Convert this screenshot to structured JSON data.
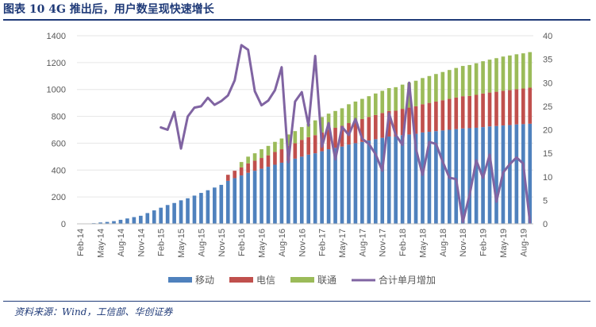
{
  "figure_title": "图表 10   4G 推出后，用户数呈现快速增长",
  "source": "资料来源：Wind，工信部、华创证券",
  "colors": {
    "mobile": "#4f81bd",
    "telecom": "#c0504d",
    "unicom": "#9bbb59",
    "net_add": "#8064a2",
    "axis": "#bfbfbf",
    "text": "#595959"
  },
  "chart_data": {
    "type": "bar",
    "title": "",
    "xlabel": "",
    "ylabel": "",
    "ylim": [
      0,
      1400
    ],
    "y_ticks": [
      "0",
      "200",
      "400",
      "600",
      "800",
      "1000",
      "1200",
      "1400"
    ],
    "y2lim": [
      0,
      40
    ],
    "y2_ticks": [
      "0",
      "5",
      "10",
      "15",
      "20",
      "25",
      "30",
      "35",
      "40"
    ],
    "x_tick_labels": [
      "Feb-14",
      "May-14",
      "Aug-14",
      "Nov-14",
      "Feb-15",
      "May-15",
      "Aug-15",
      "Nov-15",
      "Feb-16",
      "May-16",
      "Aug-16",
      "Nov-16",
      "Feb-17",
      "May-17",
      "Aug-17",
      "Nov-17",
      "Feb-18",
      "May-18",
      "Aug-18",
      "Nov-18",
      "Feb-19",
      "May-19",
      "Aug-19"
    ],
    "categories": [
      "Feb-14",
      "Mar-14",
      "Apr-14",
      "May-14",
      "Jun-14",
      "Jul-14",
      "Aug-14",
      "Sep-14",
      "Oct-14",
      "Nov-14",
      "Dec-14",
      "Jan-15",
      "Feb-15",
      "Mar-15",
      "Apr-15",
      "May-15",
      "Jun-15",
      "Jul-15",
      "Aug-15",
      "Sep-15",
      "Oct-15",
      "Nov-15",
      "Dec-15",
      "Jan-16",
      "Feb-16",
      "Mar-16",
      "Apr-16",
      "May-16",
      "Jun-16",
      "Jul-16",
      "Aug-16",
      "Sep-16",
      "Oct-16",
      "Nov-16",
      "Dec-16",
      "Jan-17",
      "Feb-17",
      "Mar-17",
      "Apr-17",
      "May-17",
      "Jun-17",
      "Jul-17",
      "Aug-17",
      "Sep-17",
      "Oct-17",
      "Nov-17",
      "Dec-17",
      "Jan-18",
      "Feb-18",
      "Mar-18",
      "Apr-18",
      "May-18",
      "Jun-18",
      "Jul-18",
      "Aug-18",
      "Sep-18",
      "Oct-18",
      "Nov-18",
      "Dec-18",
      "Jan-19",
      "Feb-19",
      "Mar-19",
      "Apr-19",
      "May-19",
      "Jun-19",
      "Jul-19",
      "Aug-19",
      "Sep-19"
    ],
    "legend_position": "bottom",
    "series": [
      {
        "name": "移动",
        "kind": "bar",
        "color": "#4f81bd",
        "values": [
          0,
          2,
          5,
          10,
          14,
          20,
          30,
          40,
          50,
          60,
          80,
          100,
          120,
          140,
          155,
          175,
          190,
          210,
          230,
          250,
          270,
          290,
          320,
          340,
          360,
          380,
          395,
          410,
          425,
          440,
          455,
          470,
          485,
          500,
          515,
          525,
          540,
          555,
          565,
          575,
          590,
          600,
          610,
          620,
          630,
          640,
          650,
          650,
          660,
          665,
          670,
          680,
          685,
          690,
          695,
          700,
          705,
          710,
          712,
          715,
          720,
          725,
          728,
          732,
          735,
          740,
          742,
          745
        ]
      },
      {
        "name": "电信",
        "kind": "bar",
        "color": "#c0504d",
        "values": [
          0,
          0,
          0,
          0,
          0,
          0,
          0,
          0,
          0,
          0,
          0,
          0,
          0,
          0,
          0,
          0,
          0,
          0,
          0,
          0,
          0,
          0,
          45,
          55,
          60,
          70,
          75,
          80,
          85,
          95,
          100,
          110,
          115,
          125,
          130,
          135,
          140,
          145,
          150,
          155,
          160,
          165,
          170,
          175,
          180,
          185,
          190,
          192,
          196,
          200,
          205,
          210,
          215,
          220,
          225,
          230,
          235,
          240,
          240,
          245,
          250,
          252,
          255,
          258,
          260,
          262,
          265,
          268
        ]
      },
      {
        "name": "联通",
        "kind": "bar",
        "color": "#9bbb59",
        "values": [
          0,
          0,
          0,
          0,
          0,
          0,
          0,
          0,
          0,
          0,
          0,
          0,
          0,
          0,
          0,
          0,
          0,
          0,
          0,
          0,
          0,
          0,
          0,
          0,
          40,
          50,
          55,
          65,
          70,
          75,
          80,
          85,
          90,
          95,
          100,
          110,
          115,
          120,
          125,
          130,
          140,
          145,
          150,
          155,
          160,
          165,
          170,
          175,
          180,
          185,
          190,
          195,
          200,
          205,
          210,
          215,
          220,
          225,
          230,
          235,
          240,
          245,
          250,
          255,
          258,
          260,
          262,
          265
        ]
      },
      {
        "name": "合计单月增加",
        "kind": "line",
        "axis": "right",
        "color": "#8064a2",
        "values": [
          null,
          null,
          null,
          null,
          null,
          null,
          null,
          null,
          null,
          null,
          null,
          null,
          20.5,
          20,
          23.8,
          16,
          22.8,
          24.7,
          25,
          26.8,
          25.3,
          26.1,
          27.3,
          30.5,
          38,
          37,
          28.2,
          25.2,
          26.2,
          28.4,
          33.3,
          13.1,
          26,
          28,
          20.9,
          35.7,
          16.4,
          21.4,
          13.7,
          20.6,
          18.9,
          22.3,
          18.1,
          17,
          14.8,
          11.3,
          23.5,
          18.9,
          16.8,
          30,
          16,
          10.4,
          17.4,
          17,
          13.2,
          9.8,
          9.5,
          0.4,
          6.1,
          13.5,
          9.8,
          14.7,
          4.7,
          10.9,
          12.7,
          14.1,
          12.8,
          0.3
        ]
      }
    ]
  }
}
